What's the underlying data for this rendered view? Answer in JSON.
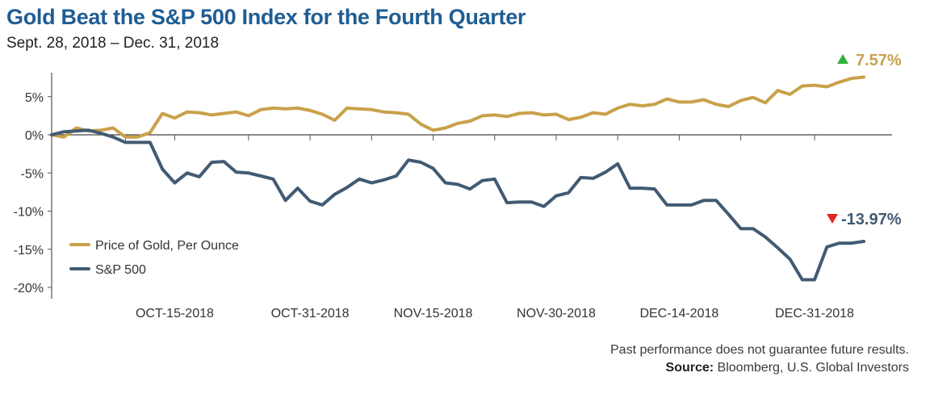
{
  "title": "Gold Beat the S&P 500 Index for the Fourth Quarter",
  "subtitle": "Sept. 28, 2018 – Dec. 31, 2018",
  "footnote": "Past performance does not guarantee future results.",
  "source_label": "Source:",
  "source_text": " Bloomberg, U.S. Global Investors",
  "colors": {
    "gold": "#c9a14a",
    "sp500": "#425b73",
    "up": "#2fb13a",
    "down": "#e2261f",
    "title": "#1f5d93"
  },
  "chart_data": {
    "type": "line",
    "ylim": [
      -21,
      9.6
    ],
    "yticks": [
      5,
      0,
      -5,
      -10,
      -15,
      -20
    ],
    "ytick_labels": [
      "5%",
      "0%",
      "-5%",
      "-10%",
      "-15%",
      "-20%"
    ],
    "xtick_labels": [
      "OCT-15-2018",
      "OCT-31-2018",
      "NOV-15-2018",
      "NOV-30-2018",
      "DEC-14-2018",
      "DEC-31-2018"
    ],
    "xtick_index": [
      10,
      21,
      31,
      41,
      51,
      62
    ],
    "grid": false,
    "legend_position": "bottom-left",
    "series": [
      {
        "name": "Price of Gold, Per Ounce",
        "end_label": "7.57%",
        "values": [
          0,
          -0.3,
          0.9,
          0.5,
          0.6,
          0.9,
          -0.3,
          -0.3,
          0.3,
          2.8,
          2.2,
          3.0,
          2.9,
          2.6,
          2.8,
          3.0,
          2.5,
          3.3,
          3.5,
          3.4,
          3.5,
          3.2,
          2.7,
          1.9,
          3.5,
          3.4,
          3.3,
          3.0,
          2.9,
          2.7,
          1.4,
          0.6,
          0.9,
          1.5,
          1.8,
          2.5,
          2.6,
          2.4,
          2.8,
          2.9,
          2.6,
          2.7,
          2.0,
          2.3,
          2.9,
          2.7,
          3.5,
          4.0,
          3.8,
          4.0,
          4.7,
          4.3,
          4.3,
          4.6,
          4.0,
          3.7,
          4.5,
          4.9,
          4.2,
          5.8,
          5.3,
          6.4,
          6.5,
          6.3,
          6.9,
          7.4,
          7.57
        ]
      },
      {
        "name": "S&P 500",
        "end_label": "-13.97%",
        "values": [
          0,
          0.4,
          0.5,
          0.6,
          0.2,
          -0.3,
          -1.0,
          -1.0,
          -1.0,
          -4.5,
          -6.3,
          -5.0,
          -5.5,
          -3.6,
          -3.5,
          -4.9,
          -5.0,
          -5.4,
          -5.8,
          -8.6,
          -7.0,
          -8.7,
          -9.2,
          -7.8,
          -6.9,
          -5.8,
          -6.3,
          -5.9,
          -5.4,
          -3.3,
          -3.6,
          -4.4,
          -6.3,
          -6.5,
          -7.1,
          -6.0,
          -5.8,
          -8.9,
          -8.8,
          -8.8,
          -9.4,
          -8.0,
          -7.6,
          -5.6,
          -5.7,
          -4.9,
          -3.8,
          -7.0,
          -7.0,
          -7.1,
          -9.2,
          -9.2,
          -9.2,
          -8.6,
          -8.6,
          -10.4,
          -12.3,
          -12.3,
          -13.4,
          -14.8,
          -16.3,
          -19.0,
          -19.0,
          -14.7,
          -14.2,
          -14.2,
          -13.97
        ]
      }
    ]
  }
}
